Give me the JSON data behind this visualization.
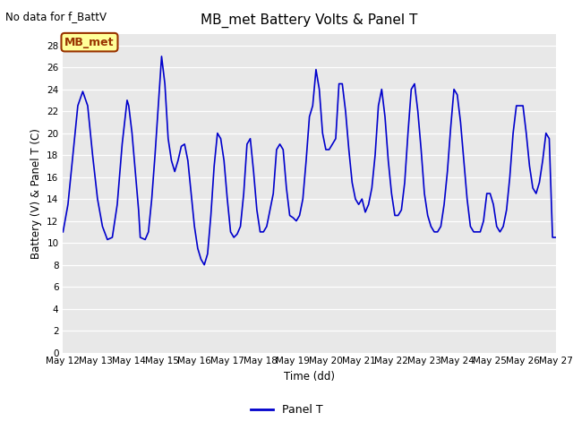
{
  "title": "MB_met Battery Volts & Panel T",
  "top_left_text": "No data for f_BattV",
  "ylabel": "Battery (V) & Panel T (C)",
  "xlabel": "Time (dd)",
  "legend_label": "Panel T",
  "legend_color": "#0000cc",
  "line_color": "#0000cc",
  "fig_bg_color": "#ffffff",
  "plot_bg_color": "#e8e8e8",
  "grid_color": "#ffffff",
  "ylim": [
    0,
    29
  ],
  "yticks": [
    0,
    2,
    4,
    6,
    8,
    10,
    12,
    14,
    16,
    18,
    20,
    22,
    24,
    26,
    28
  ],
  "xstart": 12,
  "xend": 27,
  "xtick_labels": [
    "May 12",
    "May 13",
    "May 14",
    "May 15",
    "May 16",
    "May 17",
    "May 18",
    "May 19",
    "May 20",
    "May 21",
    "May 22",
    "May 23",
    "May 24",
    "May 25",
    "May 26",
    "May 27"
  ],
  "annotation_box_text": "MB_met",
  "annotation_box_color": "#ffff99",
  "annotation_box_edge_color": "#993300",
  "annotation_box_text_color": "#993300",
  "x": [
    12.0,
    12.15,
    12.3,
    12.45,
    12.6,
    12.75,
    12.9,
    13.05,
    13.2,
    13.35,
    13.5,
    13.65,
    13.8,
    13.95,
    14.0,
    14.1,
    14.2,
    14.3,
    14.35,
    14.5,
    14.6,
    14.7,
    14.8,
    14.9,
    15.0,
    15.1,
    15.2,
    15.3,
    15.4,
    15.5,
    15.6,
    15.7,
    15.8,
    15.9,
    16.0,
    16.1,
    16.2,
    16.3,
    16.4,
    16.5,
    16.6,
    16.7,
    16.8,
    16.9,
    17.0,
    17.1,
    17.2,
    17.3,
    17.4,
    17.5,
    17.6,
    17.7,
    17.8,
    17.9,
    18.0,
    18.1,
    18.2,
    18.3,
    18.4,
    18.5,
    18.6,
    18.7,
    18.8,
    18.9,
    19.0,
    19.1,
    19.2,
    19.3,
    19.4,
    19.5,
    19.6,
    19.7,
    19.8,
    19.9,
    20.0,
    20.1,
    20.2,
    20.3,
    20.4,
    20.5,
    20.6,
    20.7,
    20.8,
    20.9,
    21.0,
    21.1,
    21.2,
    21.3,
    21.4,
    21.5,
    21.6,
    21.7,
    21.8,
    21.9,
    22.0,
    22.1,
    22.2,
    22.3,
    22.4,
    22.5,
    22.6,
    22.7,
    22.8,
    22.9,
    23.0,
    23.1,
    23.2,
    23.3,
    23.4,
    23.5,
    23.6,
    23.7,
    23.8,
    23.9,
    24.0,
    24.1,
    24.2,
    24.3,
    24.4,
    24.5,
    24.6,
    24.7,
    24.8,
    24.9,
    25.0,
    25.1,
    25.2,
    25.3,
    25.4,
    25.5,
    25.6,
    25.7,
    25.8,
    25.9,
    26.0,
    26.1,
    26.2,
    26.3,
    26.4,
    26.5,
    26.6,
    26.7,
    26.8,
    26.9,
    27.0
  ],
  "y": [
    11.0,
    13.5,
    18.0,
    22.5,
    23.8,
    22.5,
    18.0,
    14.0,
    11.5,
    10.3,
    10.5,
    13.5,
    19.0,
    23.0,
    22.5,
    20.0,
    16.5,
    13.0,
    10.5,
    10.3,
    11.0,
    14.0,
    18.0,
    22.5,
    27.0,
    24.5,
    19.5,
    17.5,
    16.5,
    17.5,
    18.8,
    19.0,
    17.5,
    14.5,
    11.5,
    9.5,
    8.5,
    8.0,
    9.0,
    12.5,
    17.0,
    20.0,
    19.5,
    17.5,
    14.0,
    11.0,
    10.5,
    10.8,
    11.5,
    14.5,
    19.0,
    19.5,
    16.5,
    13.0,
    11.0,
    11.0,
    11.5,
    13.0,
    14.5,
    18.5,
    19.0,
    18.5,
    15.0,
    12.5,
    12.3,
    12.0,
    12.5,
    14.0,
    17.5,
    21.5,
    22.5,
    25.8,
    24.0,
    20.0,
    18.5,
    18.5,
    19.0,
    19.5,
    24.5,
    24.5,
    22.0,
    18.5,
    15.5,
    14.0,
    13.5,
    14.0,
    12.8,
    13.5,
    15.0,
    18.0,
    22.5,
    24.0,
    21.5,
    17.5,
    14.5,
    12.5,
    12.5,
    13.0,
    15.5,
    20.0,
    24.0,
    24.5,
    22.0,
    18.5,
    14.5,
    12.5,
    11.5,
    11.0,
    11.0,
    11.5,
    13.5,
    16.5,
    20.5,
    24.0,
    23.5,
    21.0,
    17.5,
    14.0,
    11.5,
    11.0,
    11.0,
    11.0,
    12.0,
    14.5,
    14.5,
    13.5,
    11.5,
    11.0,
    11.5,
    13.0,
    16.0,
    20.0,
    22.5,
    22.5,
    22.5,
    20.0,
    17.0,
    15.0,
    14.5,
    15.5,
    17.5,
    20.0,
    19.5,
    10.5,
    10.5
  ]
}
